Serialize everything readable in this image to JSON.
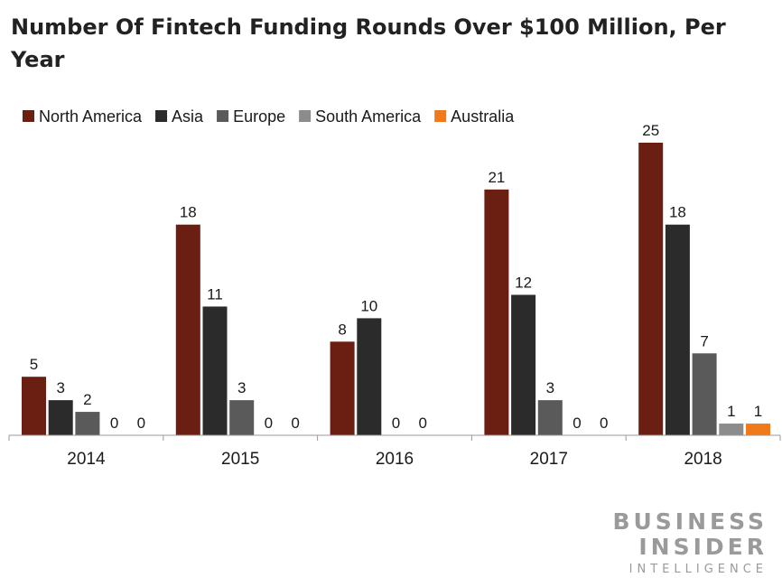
{
  "chart_data": {
    "type": "bar",
    "title": "Number Of Fintech Funding Rounds Over $100 Million, Per Year",
    "xlabel": "",
    "ylabel": "",
    "categories": [
      "2014",
      "2015",
      "2016",
      "2017",
      "2018"
    ],
    "series": [
      {
        "name": "North America",
        "color": "#6b1f12",
        "values": [
          5,
          18,
          8,
          21,
          25
        ]
      },
      {
        "name": "Asia",
        "color": "#2b2b2b",
        "values": [
          3,
          11,
          10,
          12,
          18
        ]
      },
      {
        "name": "Europe",
        "color": "#5a5a5a",
        "values": [
          2,
          3,
          0,
          3,
          7
        ]
      },
      {
        "name": "South America",
        "color": "#8c8c8c",
        "values": [
          0,
          0,
          0,
          0,
          1
        ]
      },
      {
        "name": "Australia",
        "color": "#f07a1a",
        "values": [
          0,
          0,
          null,
          0,
          1
        ]
      }
    ],
    "ylim": [
      0,
      25
    ],
    "grid": false,
    "legend_position": "top-left",
    "data_labels": true
  },
  "branding": {
    "line1": "BUSINESS",
    "line2": "INSIDER",
    "line3": "INTELLIGENCE"
  }
}
